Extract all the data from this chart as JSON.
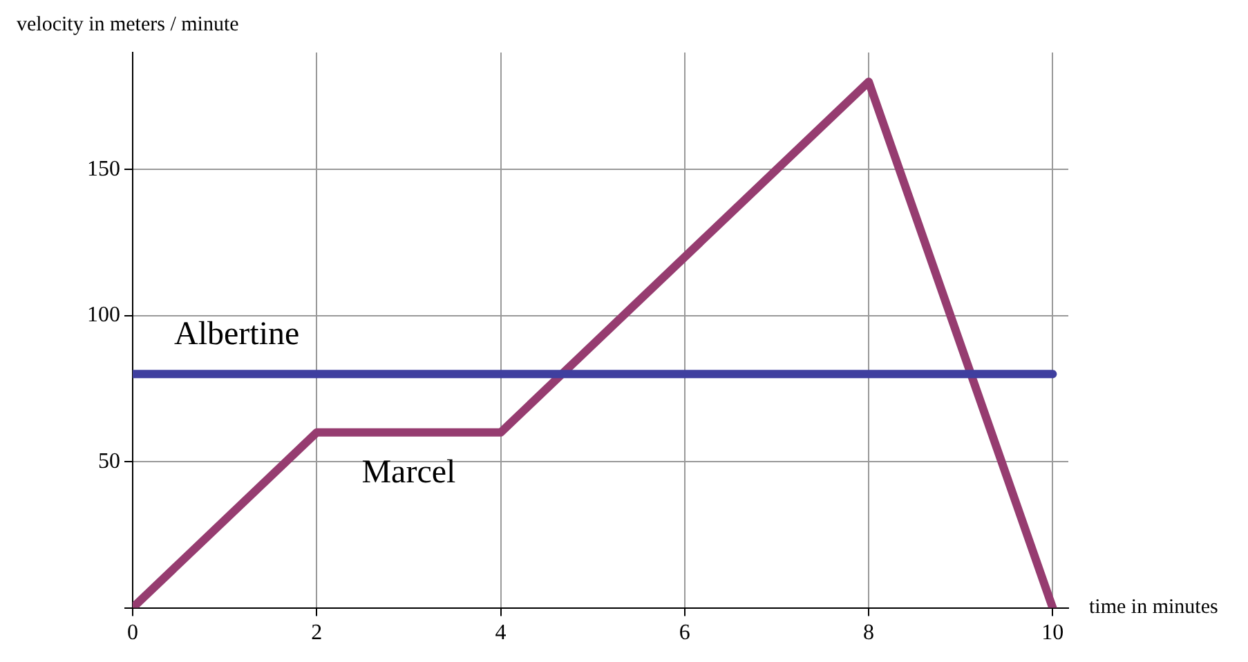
{
  "chart_data": {
    "type": "line",
    "xlabel": "time in minutes",
    "ylabel": "velocity in meters / minute",
    "xlim": [
      0,
      10.17
    ],
    "xticks": [
      0,
      2,
      4,
      6,
      8,
      10
    ],
    "ylim": [
      0,
      190
    ],
    "yticks": [
      {
        "value": 0,
        "label": null
      },
      50,
      100,
      150
    ],
    "grid": true,
    "legend": false,
    "marker": "none",
    "line_style": "solid",
    "series": [
      {
        "name": "Albertine",
        "color": "#3f3f9f",
        "x": [
          0,
          10
        ],
        "values": [
          80,
          80
        ]
      },
      {
        "name": "Marcel",
        "color": "#963c70",
        "x": [
          0,
          2,
          4,
          8,
          10
        ],
        "values": [
          0,
          60,
          60,
          180,
          0
        ]
      }
    ]
  }
}
